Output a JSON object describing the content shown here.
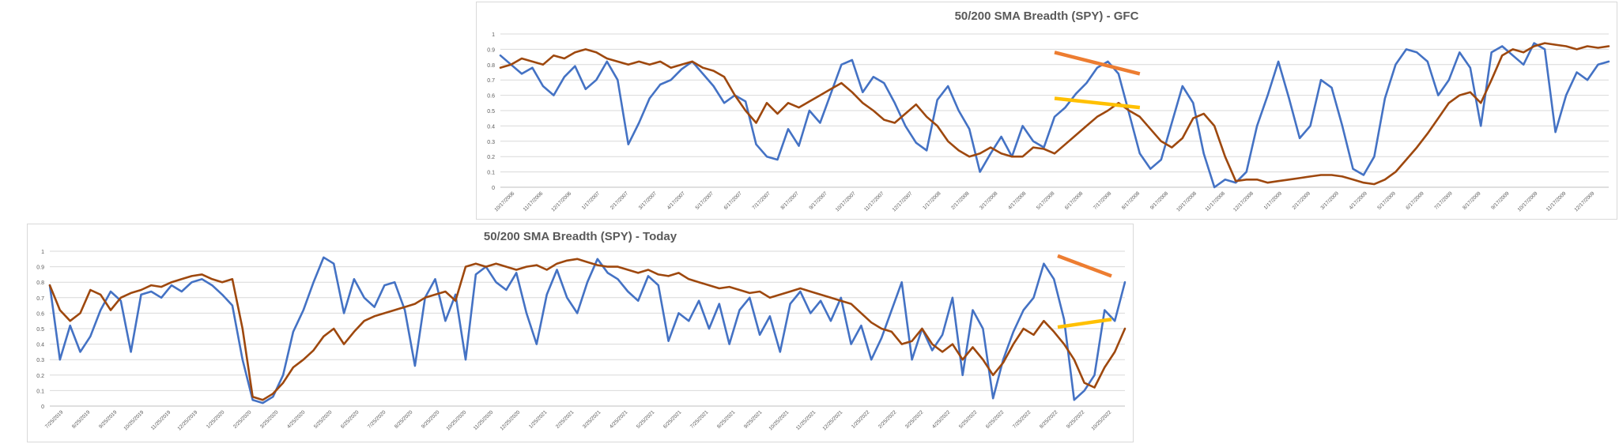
{
  "chart_data": [
    {
      "id": "gfc",
      "type": "line",
      "title": "50/200 SMA Breadth (SPY) - GFC",
      "xlabel": "",
      "ylabel": "",
      "ylim": [
        0,
        1
      ],
      "yticks": [
        "0",
        "0.1",
        "0.2",
        "0.3",
        "0.4",
        "0.5",
        "0.6",
        "0.7",
        "0.8",
        "0.9",
        "1"
      ],
      "grid": true,
      "legend": "none",
      "x_tick_labels": [
        "10/17/2006",
        "11/17/2006",
        "12/17/2006",
        "1/17/2007",
        "2/17/2007",
        "3/17/2007",
        "4/17/2007",
        "5/17/2007",
        "6/17/2007",
        "7/17/2007",
        "8/17/2007",
        "9/17/2007",
        "10/17/2007",
        "11/17/2007",
        "12/17/2007",
        "1/17/2008",
        "2/17/2008",
        "3/17/2008",
        "4/17/2008",
        "5/17/2008",
        "6/17/2008",
        "7/17/2008",
        "8/17/2008",
        "9/17/2008",
        "10/17/2008",
        "11/17/2008",
        "12/17/2008",
        "1/17/2009",
        "2/17/2009",
        "3/17/2009",
        "4/17/2009",
        "5/17/2009",
        "6/17/2009",
        "7/17/2009",
        "8/17/2009",
        "9/17/2009",
        "10/17/2009",
        "11/17/2009",
        "12/17/2009"
      ],
      "series": [
        {
          "color": "#4472C4",
          "values": [
            0.86,
            0.8,
            0.74,
            0.78,
            0.66,
            0.6,
            0.72,
            0.79,
            0.64,
            0.7,
            0.82,
            0.7,
            0.28,
            0.42,
            0.58,
            0.67,
            0.7,
            0.77,
            0.82,
            0.74,
            0.66,
            0.55,
            0.6,
            0.56,
            0.28,
            0.2,
            0.18,
            0.38,
            0.27,
            0.5,
            0.42,
            0.61,
            0.8,
            0.83,
            0.62,
            0.72,
            0.68,
            0.55,
            0.4,
            0.29,
            0.24,
            0.57,
            0.66,
            0.5,
            0.38,
            0.1,
            0.22,
            0.33,
            0.2,
            0.4,
            0.3,
            0.26,
            0.46,
            0.52,
            0.61,
            0.68,
            0.78,
            0.82,
            0.74,
            0.48,
            0.22,
            0.12,
            0.18,
            0.42,
            0.66,
            0.55,
            0.22,
            0.0,
            0.05,
            0.03,
            0.1,
            0.4,
            0.6,
            0.82,
            0.58,
            0.32,
            0.4,
            0.7,
            0.65,
            0.4,
            0.12,
            0.08,
            0.2,
            0.58,
            0.8,
            0.9,
            0.88,
            0.82,
            0.6,
            0.7,
            0.88,
            0.78,
            0.4,
            0.88,
            0.92,
            0.86,
            0.8,
            0.94,
            0.9,
            0.36,
            0.6,
            0.75,
            0.7,
            0.8,
            0.82
          ]
        },
        {
          "color": "#9E480E",
          "values": [
            0.78,
            0.8,
            0.84,
            0.82,
            0.8,
            0.86,
            0.84,
            0.88,
            0.9,
            0.88,
            0.84,
            0.82,
            0.8,
            0.82,
            0.8,
            0.82,
            0.78,
            0.8,
            0.82,
            0.78,
            0.76,
            0.72,
            0.6,
            0.5,
            0.42,
            0.55,
            0.48,
            0.55,
            0.52,
            0.56,
            0.6,
            0.64,
            0.68,
            0.62,
            0.55,
            0.5,
            0.44,
            0.42,
            0.48,
            0.54,
            0.46,
            0.4,
            0.3,
            0.24,
            0.2,
            0.22,
            0.26,
            0.22,
            0.2,
            0.2,
            0.26,
            0.25,
            0.22,
            0.28,
            0.34,
            0.4,
            0.46,
            0.5,
            0.55,
            0.5,
            0.46,
            0.38,
            0.3,
            0.26,
            0.32,
            0.45,
            0.48,
            0.4,
            0.2,
            0.04,
            0.05,
            0.05,
            0.03,
            0.04,
            0.05,
            0.06,
            0.07,
            0.08,
            0.08,
            0.07,
            0.05,
            0.03,
            0.02,
            0.05,
            0.1,
            0.18,
            0.26,
            0.35,
            0.45,
            0.55,
            0.6,
            0.62,
            0.55,
            0.7,
            0.86,
            0.9,
            0.88,
            0.92,
            0.94,
            0.93,
            0.92,
            0.9,
            0.92,
            0.91,
            0.92
          ]
        }
      ],
      "annotations": [
        {
          "type": "trendline",
          "color": "#ED7D31",
          "from": [
            "5/17/2008",
            0.88
          ],
          "to": [
            "8/17/2008",
            0.74
          ]
        },
        {
          "type": "trendline",
          "color": "#FFC000",
          "from": [
            "5/17/2008",
            0.58
          ],
          "to": [
            "8/17/2008",
            0.52
          ]
        }
      ]
    },
    {
      "id": "today",
      "type": "line",
      "title": "50/200 SMA Breadth (SPY) - Today",
      "xlabel": "",
      "ylabel": "",
      "ylim": [
        0,
        1
      ],
      "yticks": [
        "0",
        "0.1",
        "0.2",
        "0.3",
        "0.4",
        "0.5",
        "0.6",
        "0.7",
        "0.8",
        "0.9",
        "1"
      ],
      "grid": true,
      "legend": "none",
      "x_tick_labels": [
        "7/25/2019",
        "8/25/2019",
        "9/25/2019",
        "10/25/2019",
        "11/25/2019",
        "12/25/2019",
        "1/25/2020",
        "2/25/2020",
        "3/25/2020",
        "4/25/2020",
        "5/25/2020",
        "6/25/2020",
        "7/25/2020",
        "8/25/2020",
        "9/25/2020",
        "10/25/2020",
        "11/25/2020",
        "12/25/2020",
        "1/25/2021",
        "2/25/2021",
        "3/25/2021",
        "4/25/2021",
        "5/25/2021",
        "6/25/2021",
        "7/25/2021",
        "8/25/2021",
        "9/25/2021",
        "10/25/2021",
        "11/25/2021",
        "12/25/2021",
        "1/25/2022",
        "2/25/2022",
        "3/25/2022",
        "4/25/2022",
        "5/25/2022",
        "6/25/2022",
        "7/25/2022",
        "8/25/2022",
        "9/25/2022",
        "10/25/2022"
      ],
      "series": [
        {
          "color": "#4472C4",
          "values": [
            0.78,
            0.3,
            0.52,
            0.35,
            0.45,
            0.62,
            0.74,
            0.68,
            0.35,
            0.72,
            0.74,
            0.7,
            0.78,
            0.74,
            0.8,
            0.82,
            0.78,
            0.72,
            0.65,
            0.3,
            0.04,
            0.02,
            0.06,
            0.2,
            0.48,
            0.62,
            0.8,
            0.96,
            0.92,
            0.6,
            0.82,
            0.7,
            0.64,
            0.78,
            0.8,
            0.62,
            0.26,
            0.7,
            0.82,
            0.55,
            0.72,
            0.3,
            0.85,
            0.9,
            0.8,
            0.75,
            0.86,
            0.6,
            0.4,
            0.72,
            0.88,
            0.7,
            0.6,
            0.8,
            0.95,
            0.86,
            0.82,
            0.74,
            0.68,
            0.84,
            0.78,
            0.42,
            0.6,
            0.55,
            0.68,
            0.5,
            0.66,
            0.4,
            0.62,
            0.7,
            0.46,
            0.58,
            0.35,
            0.66,
            0.74,
            0.6,
            0.68,
            0.55,
            0.7,
            0.4,
            0.52,
            0.3,
            0.44,
            0.62,
            0.8,
            0.3,
            0.5,
            0.36,
            0.46,
            0.7,
            0.2,
            0.62,
            0.5,
            0.05,
            0.3,
            0.48,
            0.62,
            0.7,
            0.92,
            0.82,
            0.56,
            0.04,
            0.1,
            0.2,
            0.62,
            0.55,
            0.8
          ]
        },
        {
          "color": "#9E480E",
          "values": [
            0.78,
            0.62,
            0.55,
            0.6,
            0.75,
            0.72,
            0.62,
            0.7,
            0.73,
            0.75,
            0.78,
            0.77,
            0.8,
            0.82,
            0.84,
            0.85,
            0.82,
            0.8,
            0.82,
            0.5,
            0.06,
            0.04,
            0.08,
            0.15,
            0.25,
            0.3,
            0.36,
            0.45,
            0.5,
            0.4,
            0.48,
            0.55,
            0.58,
            0.6,
            0.62,
            0.64,
            0.66,
            0.7,
            0.72,
            0.74,
            0.68,
            0.9,
            0.92,
            0.9,
            0.92,
            0.9,
            0.88,
            0.9,
            0.91,
            0.88,
            0.92,
            0.94,
            0.95,
            0.93,
            0.91,
            0.9,
            0.9,
            0.88,
            0.86,
            0.88,
            0.85,
            0.84,
            0.86,
            0.82,
            0.8,
            0.78,
            0.76,
            0.77,
            0.75,
            0.73,
            0.74,
            0.7,
            0.72,
            0.74,
            0.76,
            0.74,
            0.72,
            0.7,
            0.68,
            0.66,
            0.6,
            0.54,
            0.5,
            0.48,
            0.4,
            0.42,
            0.5,
            0.4,
            0.35,
            0.4,
            0.3,
            0.38,
            0.3,
            0.2,
            0.28,
            0.4,
            0.5,
            0.46,
            0.55,
            0.48,
            0.4,
            0.3,
            0.15,
            0.12,
            0.25,
            0.35,
            0.5
          ]
        }
      ],
      "annotations": [
        {
          "type": "trendline",
          "color": "#ED7D31",
          "from": [
            "8/25/2022",
            0.97
          ],
          "to": [
            "10/25/2022",
            0.84
          ]
        },
        {
          "type": "trendline",
          "color": "#FFC000",
          "from": [
            "8/25/2022",
            0.51
          ],
          "to": [
            "10/25/2022",
            0.56
          ]
        }
      ]
    }
  ]
}
